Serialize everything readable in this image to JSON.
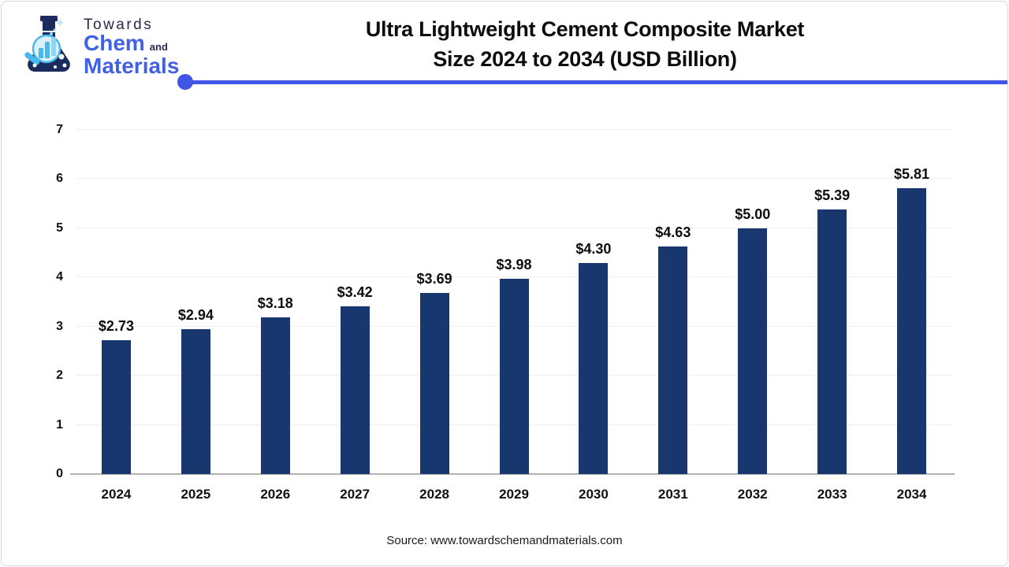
{
  "logo": {
    "towards": "Towards",
    "chem": "Chem",
    "and": "and",
    "materials": "Materials"
  },
  "header": {
    "title_line1": "Ultra Lightweight Cement Composite Market",
    "title_line2": "Size 2024 to 2034 (USD Billion)"
  },
  "chart_data": {
    "type": "bar",
    "title": "Ultra Lightweight Cement Composite Market Size 2024 to 2034 (USD Billion)",
    "categories": [
      "2024",
      "2025",
      "2026",
      "2027",
      "2028",
      "2029",
      "2030",
      "2031",
      "2032",
      "2033",
      "2034"
    ],
    "values": [
      2.73,
      2.94,
      3.18,
      3.42,
      3.69,
      3.98,
      4.3,
      4.63,
      5.0,
      5.39,
      5.81
    ],
    "value_labels": [
      "$2.73",
      "$2.94",
      "$3.18",
      "$3.42",
      "$3.69",
      "$3.98",
      "$4.30",
      "$4.63",
      "$5.00",
      "$5.39",
      "$5.81"
    ],
    "xlabel": "",
    "ylabel": "",
    "ylim": [
      0,
      7
    ],
    "yticks": [
      0,
      1,
      2,
      3,
      4,
      5,
      6,
      7
    ],
    "grid": true,
    "legend": "none"
  },
  "footer": {
    "source": "Source: www.towardschemandmaterials.com"
  },
  "colors": {
    "bar": "#17376e",
    "accent": "#4155e6",
    "gridline": "#efefef",
    "axis": "#b2b2b2"
  }
}
